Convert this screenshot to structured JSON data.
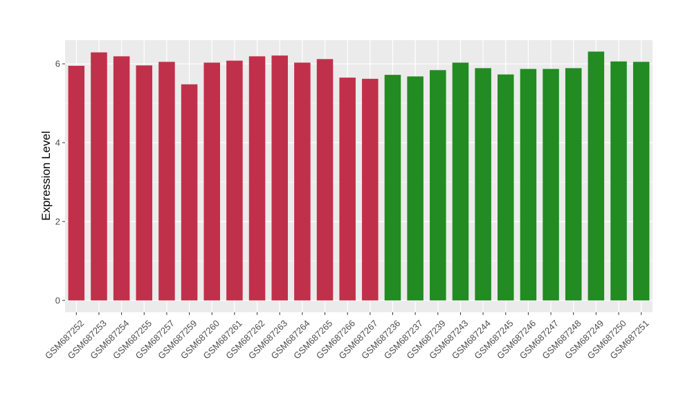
{
  "chart_data": {
    "type": "bar",
    "title": "",
    "xlabel": "",
    "ylabel": "Expression Level",
    "ylim": [
      -0.3,
      6.6
    ],
    "yticks": [
      0,
      2,
      4,
      6
    ],
    "grid": true,
    "legend": "none",
    "categories": [
      "GSM687252",
      "GSM687253",
      "GSM687254",
      "GSM687255",
      "GSM687257",
      "GSM687259",
      "GSM687260",
      "GSM687261",
      "GSM687262",
      "GSM687263",
      "GSM687264",
      "GSM687265",
      "GSM687266",
      "GSM687267",
      "GSM687236",
      "GSM687237",
      "GSM687239",
      "GSM687243",
      "GSM687244",
      "GSM687245",
      "GSM687246",
      "GSM687247",
      "GSM687248",
      "GSM687249",
      "GSM687250",
      "GSM687251"
    ],
    "values": [
      5.95,
      6.29,
      6.19,
      5.96,
      6.05,
      5.48,
      6.03,
      6.08,
      6.19,
      6.21,
      6.03,
      6.12,
      5.65,
      5.62,
      5.72,
      5.68,
      5.84,
      6.03,
      5.89,
      5.73,
      5.87,
      5.87,
      5.89,
      6.31,
      6.06,
      6.05
    ],
    "colors": [
      "#c1304a",
      "#c1304a",
      "#c1304a",
      "#c1304a",
      "#c1304a",
      "#c1304a",
      "#c1304a",
      "#c1304a",
      "#c1304a",
      "#c1304a",
      "#c1304a",
      "#c1304a",
      "#c1304a",
      "#c1304a",
      "#228b22",
      "#228b22",
      "#228b22",
      "#228b22",
      "#228b22",
      "#228b22",
      "#228b22",
      "#228b22",
      "#228b22",
      "#228b22",
      "#228b22",
      "#228b22"
    ],
    "panel_background": "#ebebeb",
    "grid_color": "#ffffff"
  }
}
